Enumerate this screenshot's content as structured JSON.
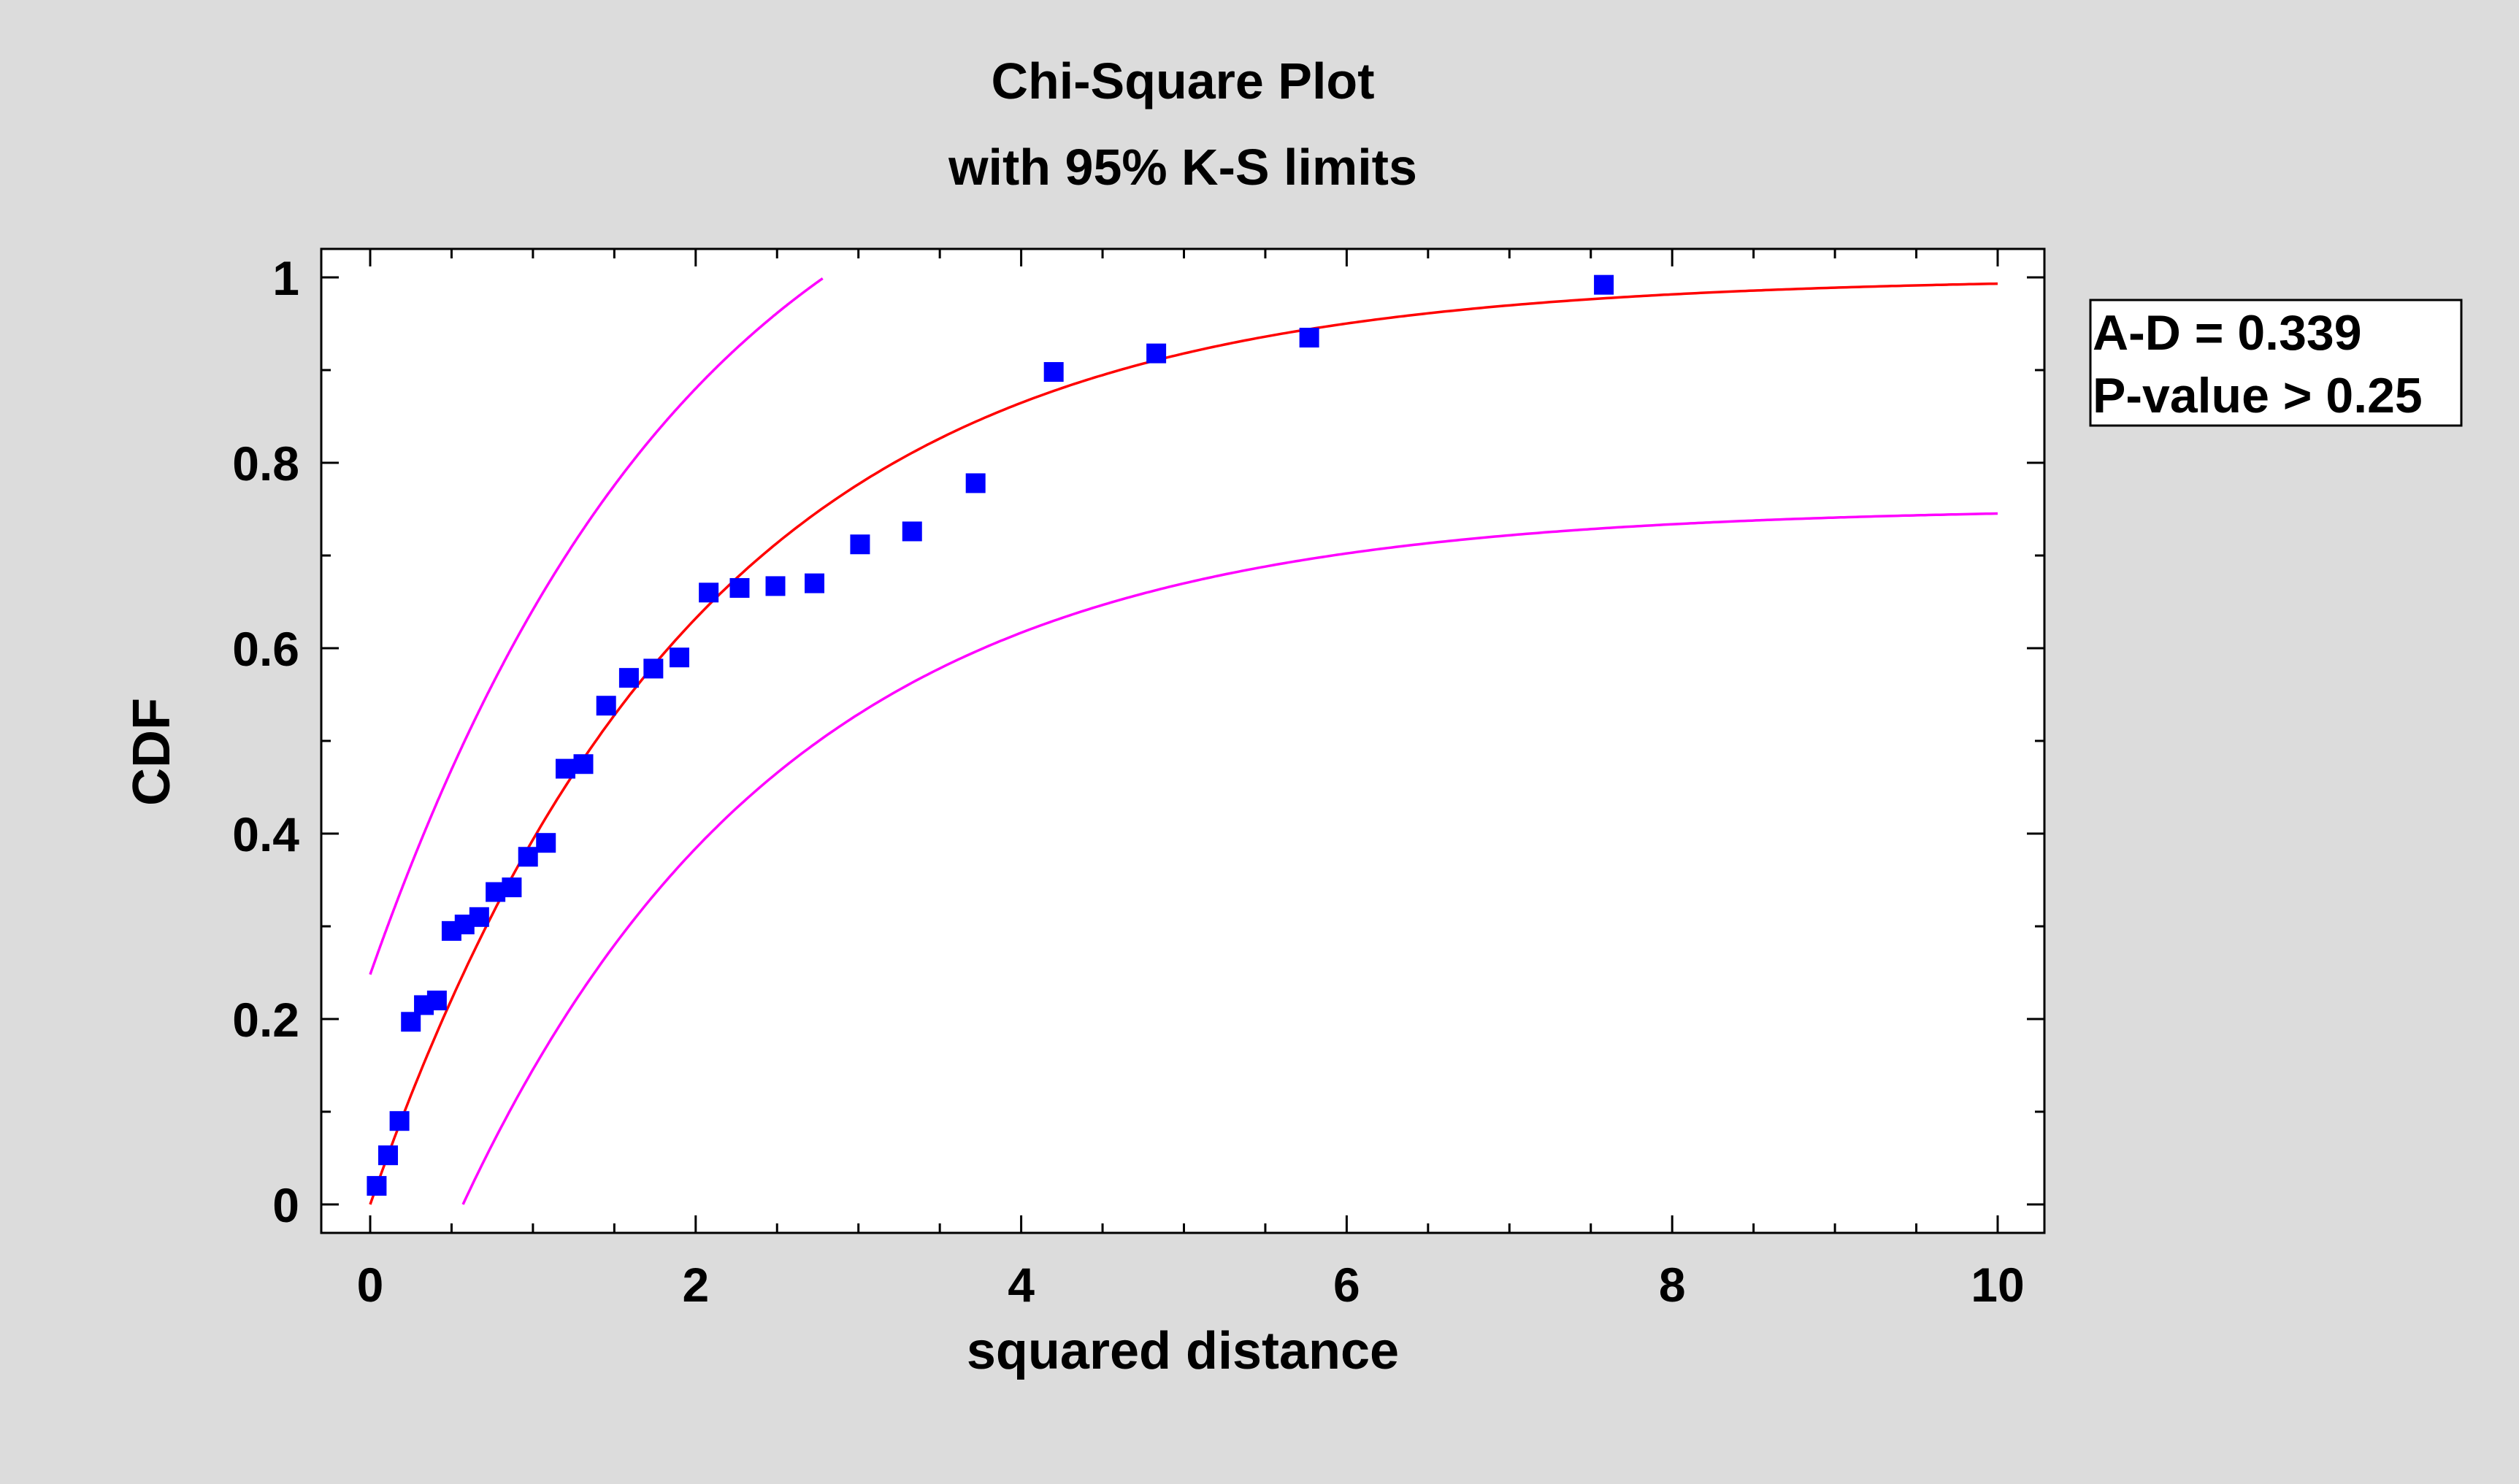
{
  "chart_data": {
    "type": "scatter",
    "title": "Chi-Square Plot",
    "subtitle": "with 95% K-S limits",
    "xlabel": "squared distance",
    "ylabel": "CDF",
    "xlim": [
      0,
      10
    ],
    "ylim": [
      0,
      1
    ],
    "x_ticks": [
      0,
      2,
      4,
      6,
      8,
      10
    ],
    "y_ticks": [
      0,
      0.2,
      0.4,
      0.6,
      0.8,
      1
    ],
    "x_tick_labels": [
      "0",
      "2",
      "4",
      "6",
      "8",
      "10"
    ],
    "y_tick_labels": [
      "0",
      "0.2",
      "0.4",
      "0.6",
      "0.8",
      "1"
    ],
    "grid": false,
    "stats_box": {
      "position": "right",
      "lines": [
        "A-D = 0.339",
        "P-value > 0.25"
      ]
    },
    "series": [
      {
        "kind": "points",
        "color": "#0000ff",
        "x": [
          0.04,
          0.11,
          0.18,
          0.25,
          0.33,
          0.41,
          0.5,
          0.58,
          0.67,
          0.77,
          0.87,
          0.97,
          1.08,
          1.2,
          1.31,
          1.45,
          1.59,
          1.74,
          1.9,
          2.08,
          2.27,
          2.49,
          2.73,
          3.01,
          3.33,
          3.72,
          4.2,
          4.83,
          5.77,
          7.58
        ],
        "y": [
          0.02,
          0.053,
          0.09,
          0.197,
          0.215,
          0.22,
          0.295,
          0.302,
          0.31,
          0.337,
          0.342,
          0.375,
          0.39,
          0.47,
          0.475,
          0.538,
          0.568,
          0.578,
          0.59,
          0.66,
          0.665,
          0.667,
          0.67,
          0.712,
          0.726,
          0.778,
          0.898,
          0.918,
          0.935,
          0.992
        ]
      },
      {
        "kind": "curve",
        "color": "#ff0000",
        "function": "chi-square CDF, 2 degrees of freedom",
        "x_range": [
          0,
          10
        ]
      },
      {
        "kind": "curve",
        "color": "#ff00ff",
        "function": "upper 95% K-S limit",
        "x_range": [
          0,
          2.78
        ]
      },
      {
        "kind": "curve",
        "color": "#ff00ff",
        "function": "lower 95% K-S limit",
        "x_range": [
          0.57,
          10
        ]
      }
    ],
    "ks_offset": 0.248
  }
}
